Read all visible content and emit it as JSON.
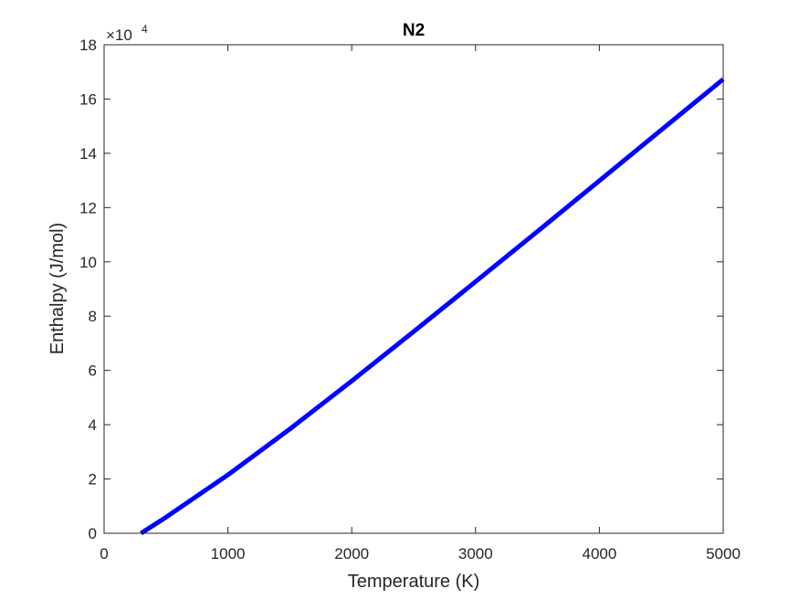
{
  "chart_data": {
    "type": "line",
    "title": "N2",
    "xlabel": "Temperature (K)",
    "ylabel": "Enthalpy (J/mol)",
    "xlim": [
      0,
      5000
    ],
    "ylim": [
      0,
      180000
    ],
    "xticks": [
      0,
      1000,
      2000,
      3000,
      4000,
      5000
    ],
    "xtick_labels": [
      "0",
      "1000",
      "2000",
      "3000",
      "4000",
      "5000"
    ],
    "yticks": [
      0,
      20000,
      40000,
      60000,
      80000,
      100000,
      120000,
      140000,
      160000,
      180000
    ],
    "ytick_labels": [
      "0",
      "2",
      "4",
      "6",
      "8",
      "10",
      "12",
      "14",
      "16",
      "18"
    ],
    "y_exponent": {
      "base": "×10",
      "power": "4"
    },
    "grid": false,
    "series": [
      {
        "color": "#0000ff",
        "x": [
          298,
          500,
          1000,
          1500,
          2000,
          2500,
          3000,
          3500,
          4000,
          4500,
          5000
        ],
        "y": [
          0,
          5900,
          21500,
          38400,
          56100,
          74300,
          92700,
          111200,
          129900,
          148600,
          167300
        ]
      }
    ]
  }
}
